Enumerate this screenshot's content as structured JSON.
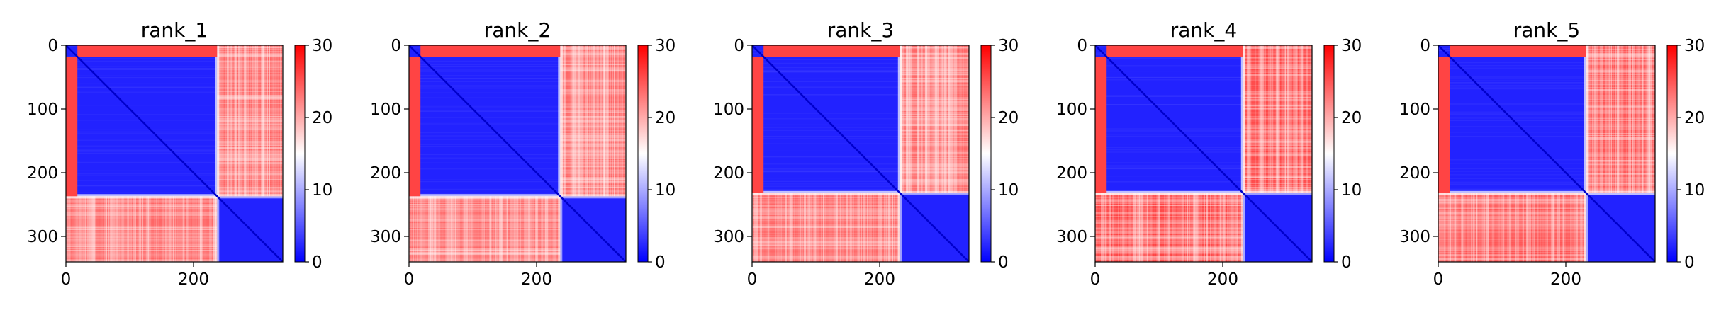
{
  "chart_data": [
    {
      "type": "heatmap",
      "title": "rank_1",
      "x_ticks": [
        0,
        200
      ],
      "y_ticks": [
        0,
        100,
        200,
        300
      ],
      "xlim": [
        0,
        340
      ],
      "ylim": [
        340,
        0
      ],
      "colorbar": {
        "ticks": [
          0,
          10,
          20,
          30
        ],
        "range": [
          0,
          30
        ],
        "colormap": "bwr"
      },
      "blocks": [
        {
          "rows": [
            0,
            237
          ],
          "cols": [
            0,
            237
          ],
          "value": 2
        },
        {
          "rows": [
            237,
            340
          ],
          "cols": [
            237,
            340
          ],
          "value": 2
        },
        {
          "rows": [
            0,
            237
          ],
          "cols": [
            237,
            340
          ],
          "value": 24
        },
        {
          "rows": [
            237,
            340
          ],
          "cols": [
            0,
            237
          ],
          "value": 24
        }
      ],
      "dashes": [
        40,
        350
      ],
      "disordered_n_terminus_rows": [
        0,
        18
      ]
    },
    {
      "type": "heatmap",
      "title": "rank_2",
      "x_ticks": [
        0,
        200
      ],
      "y_ticks": [
        0,
        100,
        200,
        300
      ],
      "xlim": [
        0,
        340
      ],
      "ylim": [
        340,
        0
      ],
      "colorbar": {
        "ticks": [
          0,
          10,
          20,
          30
        ],
        "range": [
          0,
          30
        ],
        "colormap": "bwr"
      },
      "blocks": [
        {
          "rows": [
            0,
            237
          ],
          "cols": [
            0,
            237
          ],
          "value": 2
        },
        {
          "rows": [
            237,
            340
          ],
          "cols": [
            237,
            340
          ],
          "value": 2
        },
        {
          "rows": [
            0,
            237
          ],
          "cols": [
            237,
            340
          ],
          "value": 24
        },
        {
          "rows": [
            237,
            340
          ],
          "cols": [
            0,
            237
          ],
          "value": 24
        }
      ],
      "dashes": [
        40,
        350
      ],
      "disordered_n_terminus_rows": [
        0,
        18
      ]
    },
    {
      "type": "heatmap",
      "title": "rank_3",
      "x_ticks": [
        0,
        200
      ],
      "y_ticks": [
        0,
        100,
        200,
        300
      ],
      "xlim": [
        0,
        340
      ],
      "ylim": [
        340,
        0
      ],
      "colorbar": {
        "ticks": [
          0,
          10,
          20,
          30
        ],
        "range": [
          0,
          30
        ],
        "colormap": "bwr"
      },
      "blocks": [
        {
          "rows": [
            0,
            232
          ],
          "cols": [
            0,
            232
          ],
          "value": 2
        },
        {
          "rows": [
            232,
            340
          ],
          "cols": [
            232,
            340
          ],
          "value": 2
        },
        {
          "rows": [
            0,
            232
          ],
          "cols": [
            232,
            340
          ],
          "value": 24
        },
        {
          "rows": [
            232,
            340
          ],
          "cols": [
            0,
            232
          ],
          "value": 24
        }
      ],
      "dashes": [
        40,
        350
      ],
      "disordered_n_terminus_rows": [
        0,
        18
      ]
    },
    {
      "type": "heatmap",
      "title": "rank_4",
      "x_ticks": [
        0,
        200
      ],
      "y_ticks": [
        0,
        100,
        200,
        300
      ],
      "xlim": [
        0,
        340
      ],
      "ylim": [
        340,
        0
      ],
      "colorbar": {
        "ticks": [
          0,
          10,
          20,
          30
        ],
        "range": [
          0,
          30
        ],
        "colormap": "bwr"
      },
      "blocks": [
        {
          "rows": [
            0,
            232
          ],
          "cols": [
            0,
            232
          ],
          "value": 2
        },
        {
          "rows": [
            232,
            340
          ],
          "cols": [
            232,
            340
          ],
          "value": 2
        },
        {
          "rows": [
            0,
            232
          ],
          "cols": [
            232,
            340
          ],
          "value": 26
        },
        {
          "rows": [
            232,
            340
          ],
          "cols": [
            0,
            232
          ],
          "value": 26
        }
      ],
      "dashes": [
        40,
        350
      ],
      "disordered_n_terminus_rows": [
        0,
        18
      ]
    },
    {
      "type": "heatmap",
      "title": "rank_5",
      "x_ticks": [
        0,
        200
      ],
      "y_ticks": [
        0,
        100,
        200,
        300
      ],
      "xlim": [
        0,
        340
      ],
      "ylim": [
        340,
        0
      ],
      "colorbar": {
        "ticks": [
          0,
          10,
          20,
          30
        ],
        "range": [
          0,
          30
        ],
        "colormap": "bwr"
      },
      "blocks": [
        {
          "rows": [
            0,
            232
          ],
          "cols": [
            0,
            232
          ],
          "value": 2
        },
        {
          "rows": [
            232,
            340
          ],
          "cols": [
            232,
            340
          ],
          "value": 2
        },
        {
          "rows": [
            0,
            232
          ],
          "cols": [
            232,
            340
          ],
          "value": 25
        },
        {
          "rows": [
            232,
            340
          ],
          "cols": [
            0,
            232
          ],
          "value": 25
        }
      ],
      "dashes": [
        40,
        350
      ],
      "disordered_n_terminus_rows": [
        0,
        18
      ]
    }
  ],
  "colors": {
    "low": "#0000ff",
    "mid": "#ffffff",
    "high": "#ff0000",
    "diagonal": "#0000cc"
  }
}
